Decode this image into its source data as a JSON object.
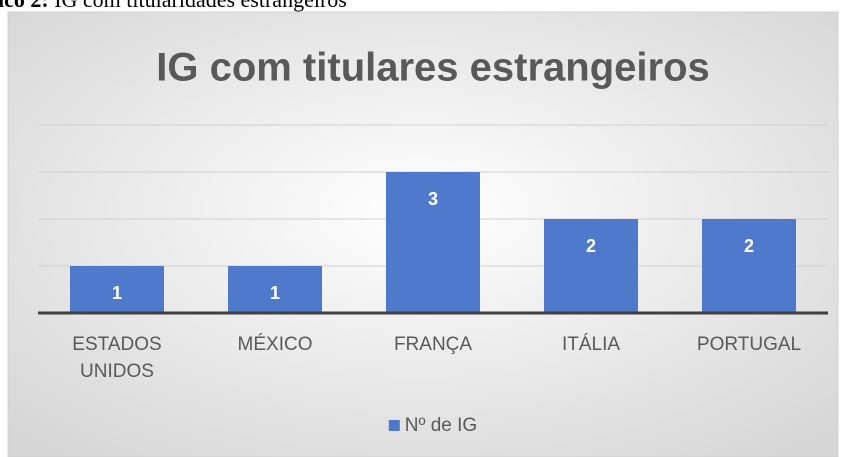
{
  "caption": {
    "label": "ico 2:",
    "text": " IG com titularidades estrangeiros"
  },
  "chart_data": {
    "type": "bar",
    "title": "IG com titulares estrangeiros",
    "categories": [
      "ESTADOS UNIDOS",
      "MÉXICO",
      "FRANÇA",
      "ITÁLIA",
      "PORTUGAL"
    ],
    "series": [
      {
        "name": "Nº de IG",
        "color": "#4f7acb",
        "values": [
          1,
          1,
          3,
          2,
          2
        ]
      }
    ],
    "ylim": [
      0,
      4
    ],
    "yticks": [
      0,
      1,
      2,
      3,
      4
    ],
    "grid": true,
    "legend": "bottom"
  }
}
